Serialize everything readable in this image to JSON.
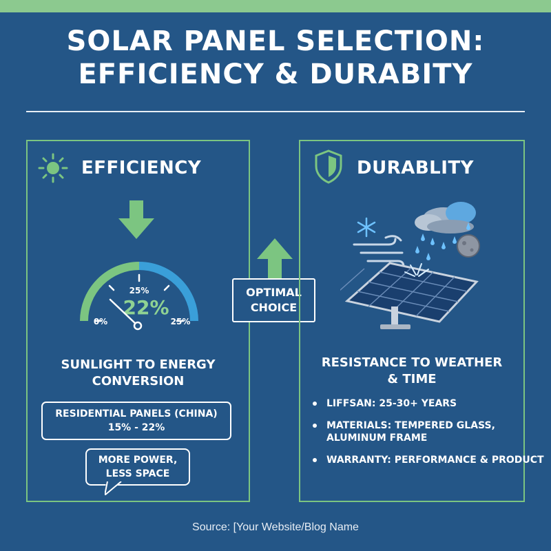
{
  "header": {
    "title_line1": "SOLAR PANEL SELECTION:",
    "title_line2": "EFFICIENCY & DURABITY"
  },
  "efficiency": {
    "heading": "EFFICIENCY",
    "icon": "sun-icon",
    "gauge": {
      "value_label": "22%",
      "tick_left": "0%",
      "tick_top": "25%",
      "tick_right": "25%",
      "needle_value_percent": 22
    },
    "caption_line1": "SUNLIGHT TO ENERGY",
    "caption_line2": "CONVERSION",
    "range_line1": "RESIDENTIAL PANELS (CHINA)",
    "range_line2": "15% - 22%",
    "bubble_line1": "MORE POWER,",
    "bubble_line2": "LESS SPACE"
  },
  "optimal": {
    "line1": "OPTIMAL",
    "line2": "CHOICE"
  },
  "durability": {
    "heading": "DURABLITY",
    "icon": "shield-icon",
    "caption_line1": "RESISTANCE TO WEATHER",
    "caption_line2": "& TIME",
    "bullets": [
      {
        "line1": "LIFFSAN: 25-30+ YEARS",
        "line2": ""
      },
      {
        "line1": "MATERIALS: TEMPERED GLASS,",
        "line2": "ALUMINUM FRAME"
      },
      {
        "line1": "WARRANTY: PERFORMANCE & PRODUCT",
        "line2": ""
      }
    ]
  },
  "footer": {
    "source": "Source: [Your Website/Blog Name"
  },
  "colors": {
    "background": "#245687",
    "accent_green": "#7cc581",
    "accent_blue": "#3a9fd9",
    "text": "#ffffff"
  }
}
